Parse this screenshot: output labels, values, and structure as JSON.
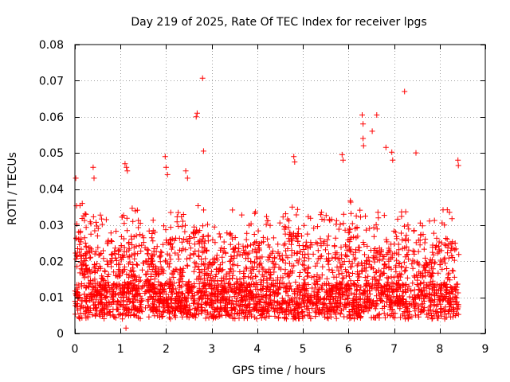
{
  "chart_data": {
    "type": "scatter",
    "title": "Day 219 of 2025, Rate Of TEC Index for receiver lpgs",
    "xlabel": "GPS time / hours",
    "ylabel": "ROTI / TECUs",
    "xlim": [
      0,
      9
    ],
    "ylim": [
      0,
      0.08
    ],
    "xticks": [
      0,
      1,
      2,
      3,
      4,
      5,
      6,
      7,
      8,
      9
    ],
    "yticks": [
      0,
      0.01,
      0.02,
      0.03,
      0.04,
      0.05,
      0.06,
      0.07,
      0.08
    ],
    "xtick_labels": [
      "0",
      "1",
      "2",
      "3",
      "4",
      "5",
      "6",
      "7",
      "8",
      "9"
    ],
    "ytick_labels": [
      "0",
      "0.01",
      "0.02",
      "0.03",
      "0.04",
      "0.05",
      "0.06",
      "0.07",
      "0.08"
    ],
    "grid": true,
    "marker": "plus",
    "color": "#ff0000",
    "series": [
      {
        "name": "ROTI",
        "x_range": [
          0,
          8.42
        ],
        "typical_min": 0.003,
        "typical_max": 0.036,
        "density_points": 3200,
        "seed": 219,
        "outliers": [
          {
            "x": 0.02,
            "y": 0.043
          },
          {
            "x": 0.4,
            "y": 0.046
          },
          {
            "x": 0.42,
            "y": 0.043
          },
          {
            "x": 1.1,
            "y": 0.047
          },
          {
            "x": 1.13,
            "y": 0.046
          },
          {
            "x": 1.15,
            "y": 0.045
          },
          {
            "x": 1.12,
            "y": 0.0015
          },
          {
            "x": 1.98,
            "y": 0.049
          },
          {
            "x": 2.0,
            "y": 0.046
          },
          {
            "x": 2.03,
            "y": 0.044
          },
          {
            "x": 2.43,
            "y": 0.045
          },
          {
            "x": 2.47,
            "y": 0.043
          },
          {
            "x": 2.66,
            "y": 0.06
          },
          {
            "x": 2.68,
            "y": 0.061
          },
          {
            "x": 2.8,
            "y": 0.0707
          },
          {
            "x": 2.82,
            "y": 0.0505
          },
          {
            "x": 4.8,
            "y": 0.049
          },
          {
            "x": 4.82,
            "y": 0.0475
          },
          {
            "x": 5.86,
            "y": 0.0495
          },
          {
            "x": 5.88,
            "y": 0.048
          },
          {
            "x": 6.3,
            "y": 0.0605
          },
          {
            "x": 6.32,
            "y": 0.058
          },
          {
            "x": 6.32,
            "y": 0.054
          },
          {
            "x": 6.33,
            "y": 0.052
          },
          {
            "x": 6.52,
            "y": 0.056
          },
          {
            "x": 6.62,
            "y": 0.0605
          },
          {
            "x": 6.82,
            "y": 0.0515
          },
          {
            "x": 6.95,
            "y": 0.0502
          },
          {
            "x": 6.97,
            "y": 0.048
          },
          {
            "x": 7.23,
            "y": 0.067
          },
          {
            "x": 7.48,
            "y": 0.05
          },
          {
            "x": 8.4,
            "y": 0.048
          },
          {
            "x": 8.41,
            "y": 0.0465
          }
        ]
      }
    ]
  }
}
